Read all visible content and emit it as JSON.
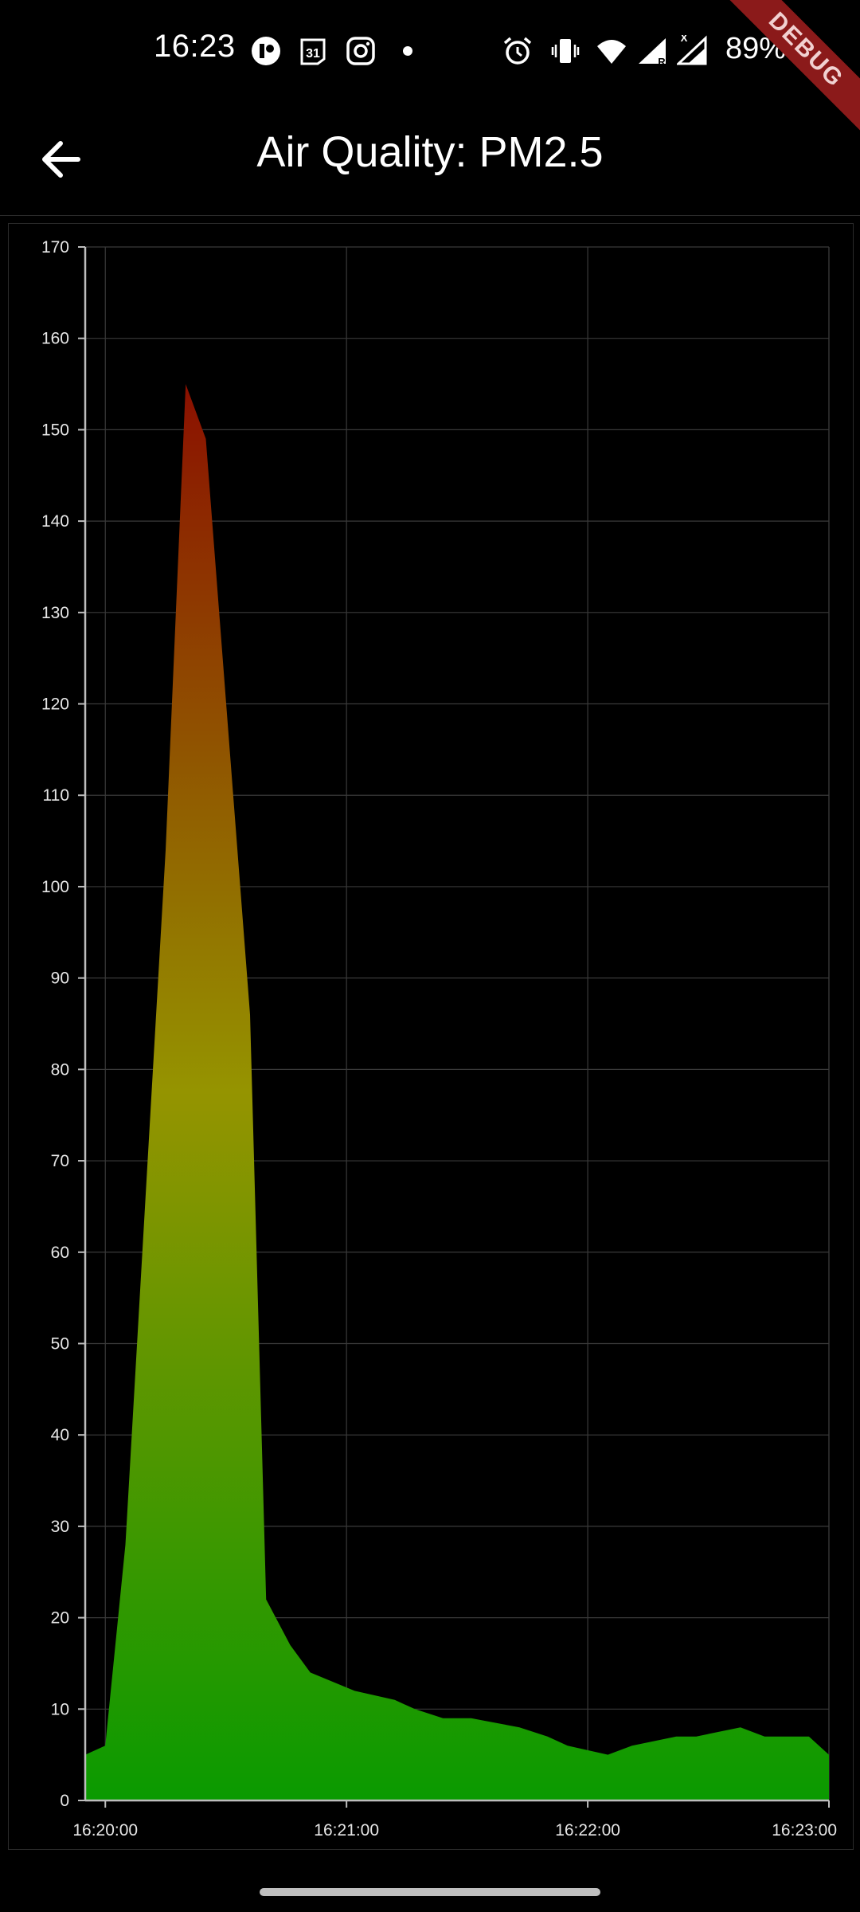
{
  "status_bar": {
    "time": "16:23",
    "battery": "89%",
    "left_icons": [
      "notification-app-icon",
      "calendar-31-icon",
      "instagram-icon",
      "dot-icon"
    ],
    "right_icons": [
      "alarm-icon",
      "vibrate-icon",
      "wifi-icon",
      "signal-roaming-icon",
      "signal-icon",
      "battery-charging-icon"
    ],
    "debug_label": "DEBUG"
  },
  "app_bar": {
    "title": "Air Quality: PM2.5",
    "back_icon": "arrow-back-icon"
  },
  "colors": {
    "background": "#000000",
    "grid": "#3a3a3a",
    "axis": "#bdbdbd",
    "area_high": "#8b1000",
    "area_mid": "#959400",
    "area_low": "#0a9a00"
  },
  "chart_data": {
    "type": "area",
    "title": "",
    "xlabel": "",
    "ylabel": "",
    "ylim": [
      0,
      170
    ],
    "xlim": [
      "16:19:55",
      "16:23:00"
    ],
    "x_ticks": [
      "16:20:00",
      "16:21:00",
      "16:22:00",
      "16:23:00"
    ],
    "y_ticks": [
      0,
      10,
      20,
      30,
      40,
      50,
      60,
      70,
      80,
      90,
      100,
      110,
      120,
      130,
      140,
      150,
      160,
      170
    ],
    "grid": true,
    "legend": "none",
    "gradient": "green at low values, yellow mid, red high",
    "x": [
      "16:19:55",
      "16:19:60",
      "16:20:05",
      "16:20:15",
      "16:20:20",
      "16:20:25",
      "16:20:36",
      "16:20:40",
      "16:20:46",
      "16:20:51",
      "16:21:02",
      "16:21:12",
      "16:21:17",
      "16:21:24",
      "16:21:31",
      "16:21:43",
      "16:21:50",
      "16:21:55",
      "16:22:05",
      "16:22:11",
      "16:22:22",
      "16:22:27",
      "16:22:38",
      "16:22:44",
      "16:22:55",
      "16:23:00"
    ],
    "values": [
      5,
      6,
      28,
      104,
      155,
      149,
      86,
      22,
      17,
      14,
      12,
      11,
      10,
      9,
      9,
      8,
      7,
      6,
      5,
      6,
      7,
      7,
      8,
      7,
      7,
      5
    ]
  }
}
